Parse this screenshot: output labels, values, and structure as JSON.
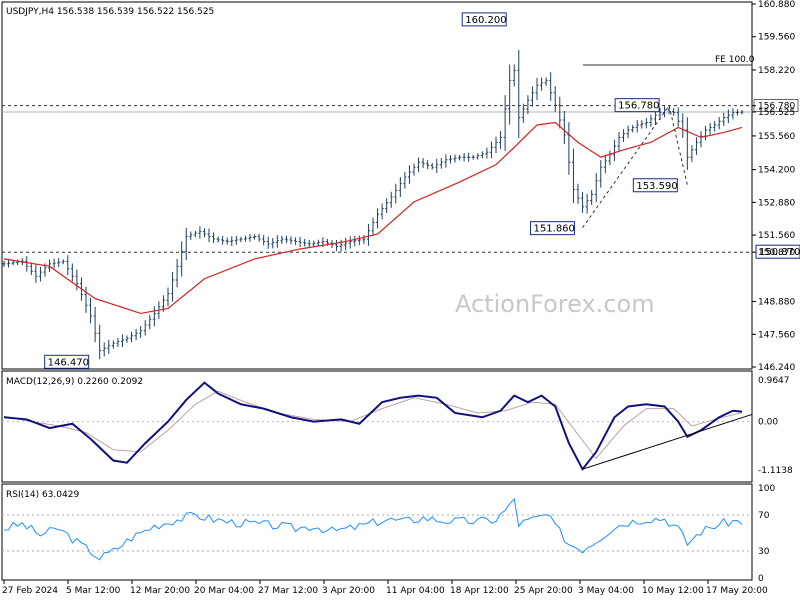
{
  "chart_data": {
    "type": "candlestick",
    "symbol_header": "USDJPY,H4  156.538 156.539 156.522 156.525",
    "watermark": "ActionForex.com",
    "x_tick_labels": [
      "27 Feb 2024",
      "5 Mar 12:00",
      "12 Mar 20:00",
      "20 Mar 04:00",
      "27 Mar 12:00",
      "3 Apr 20:00",
      "11 Apr 04:00",
      "18 Apr 12:00",
      "25 Apr 20:00",
      "3 May 04:00",
      "10 May 12:00",
      "17 May 20:00"
    ],
    "price_panel": {
      "ylim": [
        146.24,
        160.88
      ],
      "y_ticks": [
        "160.880",
        "159.560",
        "158.220",
        "156.780",
        "156.525",
        "155.560",
        "154.200",
        "152.880",
        "151.560",
        "150.870",
        "148.880",
        "147.560",
        "146.240"
      ],
      "current_price": 156.525,
      "horizontal_lines": [
        {
          "value": 156.78,
          "style": "dashed"
        },
        {
          "value": 150.87,
          "style": "dashed"
        },
        {
          "value": 156.525,
          "style": "solid-gray"
        }
      ],
      "fe_line": {
        "label": "FE 100.0",
        "value": 158.42
      },
      "annotations": [
        {
          "label": "160.200",
          "value": 160.2,
          "x_index": 112
        },
        {
          "label": "156.780",
          "value": 156.78,
          "x_index": 146
        },
        {
          "label": "153.590",
          "value": 153.59,
          "x_index": 150
        },
        {
          "label": "151.860",
          "value": 151.86,
          "x_index": 127
        },
        {
          "label": "150.870",
          "value": 150.87,
          "x_index": 162
        },
        {
          "label": "146.470",
          "value": 146.47,
          "x_index": 21
        }
      ],
      "close_path": [
        [
          0,
          150.4
        ],
        [
          4,
          150.5
        ],
        [
          7,
          149.9
        ],
        [
          10,
          150.4
        ],
        [
          13,
          150.5
        ],
        [
          16,
          149.6
        ],
        [
          19,
          148.3
        ],
        [
          21,
          146.9
        ],
        [
          24,
          147.2
        ],
        [
          27,
          147.4
        ],
        [
          30,
          147.7
        ],
        [
          33,
          148.4
        ],
        [
          36,
          149.2
        ],
        [
          38,
          150.3
        ],
        [
          40,
          151.5
        ],
        [
          43,
          151.7
        ],
        [
          46,
          151.4
        ],
        [
          49,
          151.3
        ],
        [
          52,
          151.4
        ],
        [
          55,
          151.5
        ],
        [
          58,
          151.2
        ],
        [
          61,
          151.4
        ],
        [
          64,
          151.3
        ],
        [
          67,
          151.2
        ],
        [
          70,
          151.3
        ],
        [
          73,
          151.1
        ],
        [
          76,
          151.3
        ],
        [
          79,
          151.4
        ],
        [
          82,
          152.4
        ],
        [
          85,
          153.1
        ],
        [
          88,
          153.9
        ],
        [
          91,
          154.5
        ],
        [
          94,
          154.3
        ],
        [
          97,
          154.6
        ],
        [
          100,
          154.7
        ],
        [
          103,
          154.7
        ],
        [
          106,
          154.9
        ],
        [
          109,
          155.5
        ],
        [
          111,
          157.8
        ],
        [
          112,
          158.2
        ],
        [
          113,
          156.3
        ],
        [
          115,
          157.0
        ],
        [
          117,
          157.6
        ],
        [
          119,
          157.8
        ],
        [
          121,
          156.8
        ],
        [
          123,
          155.6
        ],
        [
          125,
          153.4
        ],
        [
          127,
          152.7
        ],
        [
          129,
          153.2
        ],
        [
          131,
          154.3
        ],
        [
          133,
          154.8
        ],
        [
          135,
          155.5
        ],
        [
          137,
          155.8
        ],
        [
          139,
          156.0
        ],
        [
          141,
          156.1
        ],
        [
          143,
          156.4
        ],
        [
          145,
          156.6
        ],
        [
          147,
          156.5
        ],
        [
          149,
          155.8
        ],
        [
          150,
          154.7
        ],
        [
          152,
          155.3
        ],
        [
          154,
          155.8
        ],
        [
          156,
          156.0
        ],
        [
          158,
          156.3
        ],
        [
          160,
          156.5
        ],
        [
          162,
          156.525
        ]
      ],
      "ma_path": [
        [
          0,
          150.6
        ],
        [
          10,
          150.3
        ],
        [
          20,
          149.0
        ],
        [
          30,
          148.4
        ],
        [
          36,
          148.6
        ],
        [
          44,
          149.8
        ],
        [
          55,
          150.6
        ],
        [
          65,
          151.0
        ],
        [
          75,
          151.3
        ],
        [
          82,
          151.6
        ],
        [
          90,
          152.9
        ],
        [
          100,
          153.7
        ],
        [
          108,
          154.4
        ],
        [
          112,
          155.1
        ],
        [
          117,
          156.0
        ],
        [
          121,
          156.1
        ],
        [
          126,
          155.3
        ],
        [
          131,
          154.7
        ],
        [
          136,
          155.0
        ],
        [
          142,
          155.3
        ],
        [
          148,
          155.9
        ],
        [
          153,
          155.5
        ],
        [
          158,
          155.7
        ],
        [
          162,
          155.9
        ]
      ]
    },
    "macd_panel": {
      "title": "MACD(12,26,9) 0.2260 0.2092",
      "y_ticks": [
        "0.9647",
        "0.00",
        "-1.1138"
      ],
      "ylim": [
        -1.35,
        1.1
      ],
      "main_path": [
        [
          0,
          0.1
        ],
        [
          5,
          0.05
        ],
        [
          10,
          -0.15
        ],
        [
          15,
          -0.05
        ],
        [
          19,
          -0.4
        ],
        [
          24,
          -0.9
        ],
        [
          27,
          -0.95
        ],
        [
          31,
          -0.5
        ],
        [
          36,
          0.0
        ],
        [
          40,
          0.5
        ],
        [
          44,
          0.9
        ],
        [
          47,
          0.65
        ],
        [
          52,
          0.4
        ],
        [
          57,
          0.3
        ],
        [
          63,
          0.1
        ],
        [
          68,
          0.0
        ],
        [
          74,
          0.05
        ],
        [
          78,
          -0.05
        ],
        [
          83,
          0.45
        ],
        [
          87,
          0.55
        ],
        [
          91,
          0.6
        ],
        [
          95,
          0.55
        ],
        [
          99,
          0.2
        ],
        [
          105,
          0.1
        ],
        [
          109,
          0.25
        ],
        [
          112,
          0.6
        ],
        [
          115,
          0.45
        ],
        [
          118,
          0.6
        ],
        [
          121,
          0.35
        ],
        [
          124,
          -0.5
        ],
        [
          127,
          -1.1
        ],
        [
          130,
          -0.7
        ],
        [
          134,
          0.1
        ],
        [
          137,
          0.35
        ],
        [
          141,
          0.4
        ],
        [
          145,
          0.35
        ],
        [
          148,
          0.0
        ],
        [
          150,
          -0.35
        ],
        [
          153,
          -0.2
        ],
        [
          157,
          0.1
        ],
        [
          160,
          0.25
        ],
        [
          162,
          0.23
        ]
      ],
      "signal_path": [
        [
          0,
          0.12
        ],
        [
          6,
          0.0
        ],
        [
          12,
          -0.1
        ],
        [
          18,
          -0.25
        ],
        [
          24,
          -0.65
        ],
        [
          30,
          -0.7
        ],
        [
          36,
          -0.2
        ],
        [
          42,
          0.4
        ],
        [
          47,
          0.7
        ],
        [
          53,
          0.45
        ],
        [
          60,
          0.2
        ],
        [
          68,
          0.05
        ],
        [
          76,
          0.0
        ],
        [
          83,
          0.3
        ],
        [
          90,
          0.55
        ],
        [
          97,
          0.4
        ],
        [
          104,
          0.2
        ],
        [
          110,
          0.25
        ],
        [
          116,
          0.45
        ],
        [
          121,
          0.4
        ],
        [
          126,
          -0.3
        ],
        [
          130,
          -0.85
        ],
        [
          136,
          -0.1
        ],
        [
          141,
          0.3
        ],
        [
          147,
          0.3
        ],
        [
          151,
          -0.1
        ],
        [
          156,
          0.05
        ],
        [
          162,
          0.21
        ]
      ],
      "trendline": [
        [
          127,
          -1.1
        ],
        [
          162,
          0.05
        ]
      ]
    },
    "rsi_panel": {
      "title": "RSI(14) 63.0429",
      "y_ticks": [
        "100",
        "70",
        "30",
        "0"
      ],
      "ylim": [
        0,
        100
      ],
      "levels": [
        70,
        30
      ],
      "path": [
        [
          0,
          55
        ],
        [
          4,
          60
        ],
        [
          8,
          48
        ],
        [
          12,
          55
        ],
        [
          16,
          40
        ],
        [
          19,
          30
        ],
        [
          21,
          22
        ],
        [
          24,
          30
        ],
        [
          28,
          45
        ],
        [
          33,
          58
        ],
        [
          38,
          65
        ],
        [
          42,
          70
        ],
        [
          46,
          65
        ],
        [
          50,
          62
        ],
        [
          55,
          60
        ],
        [
          60,
          58
        ],
        [
          64,
          55
        ],
        [
          68,
          58
        ],
        [
          72,
          52
        ],
        [
          76,
          55
        ],
        [
          80,
          60
        ],
        [
          84,
          65
        ],
        [
          88,
          63
        ],
        [
          92,
          67
        ],
        [
          96,
          64
        ],
        [
          100,
          63
        ],
        [
          104,
          63
        ],
        [
          108,
          65
        ],
        [
          111,
          80
        ],
        [
          112,
          88
        ],
        [
          113,
          60
        ],
        [
          116,
          65
        ],
        [
          119,
          70
        ],
        [
          121,
          58
        ],
        [
          124,
          38
        ],
        [
          127,
          32
        ],
        [
          130,
          42
        ],
        [
          134,
          57
        ],
        [
          137,
          62
        ],
        [
          141,
          66
        ],
        [
          145,
          66
        ],
        [
          148,
          55
        ],
        [
          150,
          38
        ],
        [
          153,
          52
        ],
        [
          157,
          60
        ],
        [
          160,
          63
        ],
        [
          162,
          63
        ]
      ]
    }
  }
}
